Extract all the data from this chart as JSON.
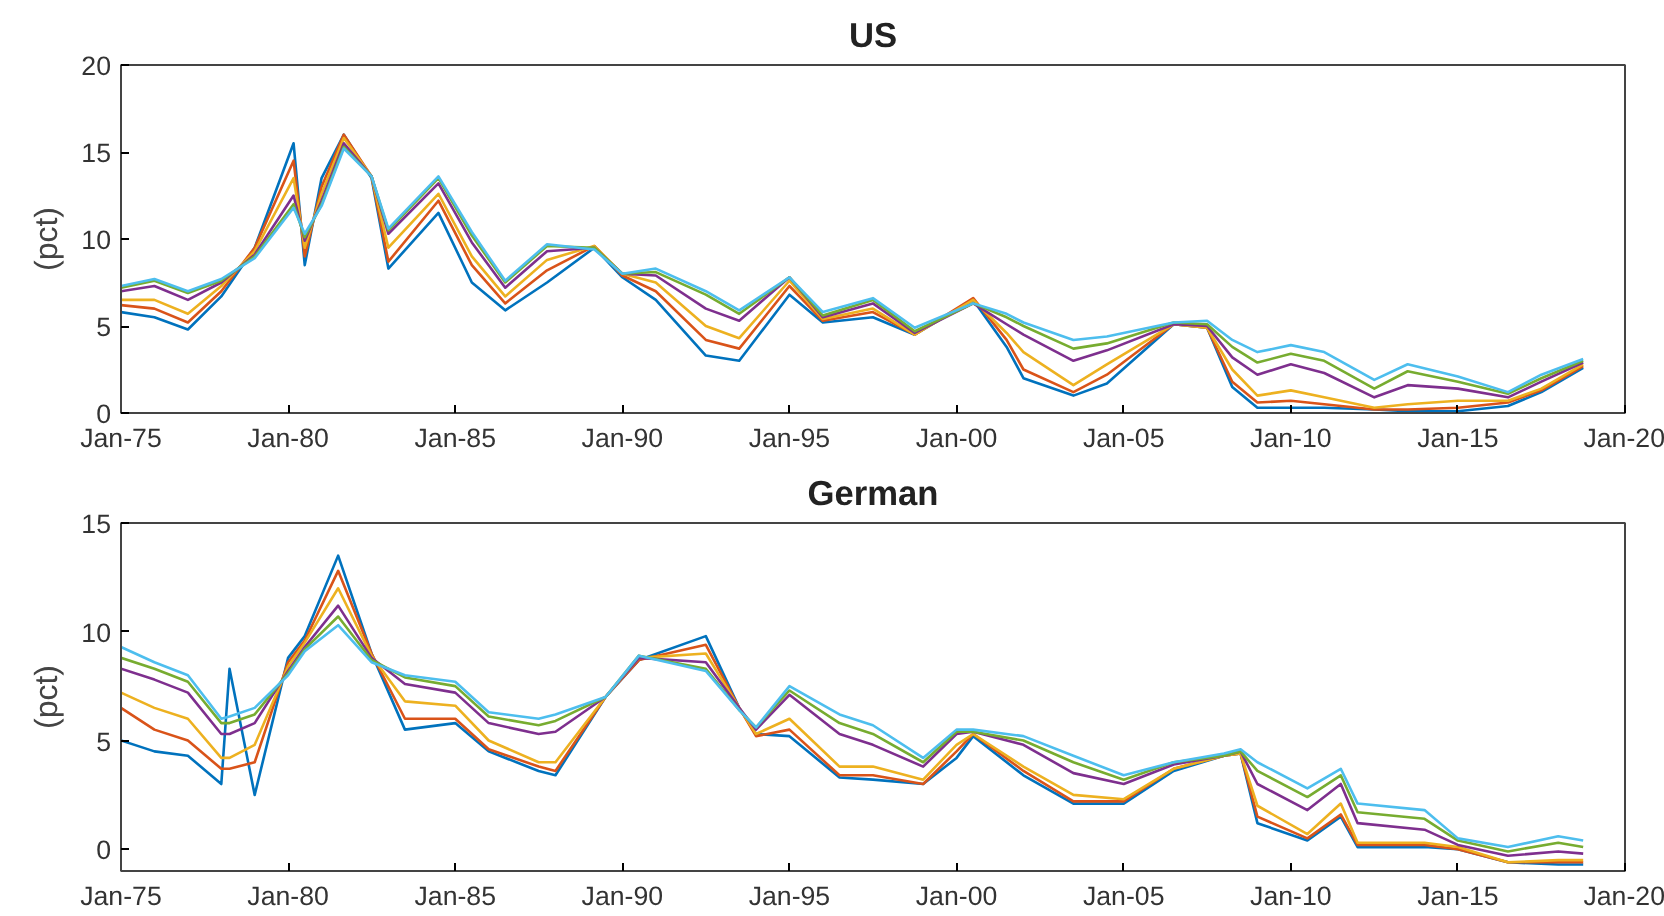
{
  "chart_data": [
    {
      "type": "line",
      "title": "US",
      "ylabel": "(pct)",
      "grid": false,
      "x": [
        "1975-01",
        "1976-01",
        "1977-01",
        "1978-01",
        "1979-01",
        "1980-03",
        "1980-07",
        "1981-01",
        "1981-09",
        "1982-07",
        "1983-01",
        "1984-07",
        "1985-07",
        "1986-07",
        "1987-10",
        "1989-03",
        "1990-01",
        "1991-01",
        "1992-07",
        "1993-07",
        "1995-01",
        "1996-01",
        "1997-07",
        "1998-10",
        "2000-07",
        "2001-07",
        "2002-01",
        "2003-07",
        "2004-07",
        "2006-07",
        "2007-07",
        "2008-04",
        "2009-01",
        "2010-01",
        "2011-01",
        "2012-07",
        "2013-07",
        "2015-01",
        "2016-07",
        "2017-07",
        "2018-10"
      ],
      "xlim": [
        "1975-01",
        "2020-01"
      ],
      "xticks": [
        {
          "value": "1975-01",
          "label": "Jan-75"
        },
        {
          "value": "1980-01",
          "label": "Jan-80"
        },
        {
          "value": "1985-01",
          "label": "Jan-85"
        },
        {
          "value": "1990-01",
          "label": "Jan-90"
        },
        {
          "value": "1995-01",
          "label": "Jan-95"
        },
        {
          "value": "2000-01",
          "label": "Jan-00"
        },
        {
          "value": "2005-01",
          "label": "Jan-05"
        },
        {
          "value": "2010-01",
          "label": "Jan-10"
        },
        {
          "value": "2015-01",
          "label": "Jan-15"
        },
        {
          "value": "2020-01",
          "label": "Jan-20"
        }
      ],
      "ylim": [
        0,
        20
      ],
      "yticks": [
        0,
        5,
        10,
        15,
        20
      ],
      "series": [
        {
          "color": "#0072bd",
          "values": [
            5.8,
            5.5,
            4.8,
            6.7,
            9.5,
            15.5,
            8.5,
            13.5,
            16.0,
            13.5,
            8.3,
            11.5,
            7.5,
            5.9,
            7.5,
            9.5,
            7.8,
            6.5,
            3.3,
            3.0,
            6.8,
            5.2,
            5.5,
            4.5,
            6.5,
            3.8,
            2.0,
            1.0,
            1.7,
            5.1,
            4.9,
            1.5,
            0.3,
            0.3,
            0.3,
            0.2,
            0.1,
            0.1,
            0.4,
            1.2,
            2.6
          ]
        },
        {
          "color": "#d95319",
          "values": [
            6.2,
            6.0,
            5.2,
            7.0,
            9.5,
            14.5,
            9.0,
            13.0,
            16.0,
            13.6,
            8.7,
            12.2,
            8.5,
            6.3,
            8.2,
            9.6,
            7.9,
            7.0,
            4.2,
            3.7,
            7.3,
            5.3,
            5.8,
            4.5,
            6.6,
            4.2,
            2.5,
            1.2,
            2.2,
            5.1,
            4.9,
            1.8,
            0.6,
            0.7,
            0.5,
            0.2,
            0.2,
            0.3,
            0.6,
            1.3,
            2.7
          ]
        },
        {
          "color": "#edb120",
          "values": [
            6.5,
            6.5,
            5.7,
            7.3,
            9.3,
            13.5,
            9.5,
            12.6,
            15.8,
            13.6,
            9.5,
            12.6,
            9.0,
            6.7,
            8.8,
            9.6,
            8.0,
            7.5,
            5.0,
            4.3,
            7.6,
            5.4,
            6.0,
            4.5,
            6.5,
            4.6,
            3.5,
            1.6,
            2.8,
            5.1,
            4.9,
            2.5,
            1.0,
            1.3,
            0.9,
            0.3,
            0.5,
            0.7,
            0.7,
            1.4,
            2.8
          ]
        },
        {
          "color": "#7e2f8e",
          "values": [
            7.0,
            7.3,
            6.5,
            7.5,
            9.1,
            12.5,
            9.9,
            12.2,
            15.5,
            13.6,
            10.3,
            13.2,
            9.8,
            7.2,
            9.3,
            9.5,
            8.0,
            7.9,
            6.0,
            5.3,
            7.8,
            5.5,
            6.3,
            4.6,
            6.3,
            5.1,
            4.5,
            3.0,
            3.6,
            5.1,
            5.0,
            3.2,
            2.2,
            2.8,
            2.3,
            0.9,
            1.6,
            1.4,
            0.9,
            1.8,
            2.9
          ]
        },
        {
          "color": "#77ac30",
          "values": [
            7.2,
            7.6,
            6.9,
            7.6,
            9.0,
            12.0,
            10.1,
            12.0,
            15.3,
            13.6,
            10.5,
            13.5,
            10.2,
            7.5,
            9.6,
            9.5,
            8.0,
            8.1,
            6.8,
            5.7,
            7.8,
            5.6,
            6.5,
            4.7,
            6.3,
            5.5,
            5.0,
            3.7,
            4.0,
            5.2,
            5.1,
            3.8,
            2.9,
            3.4,
            3.0,
            1.4,
            2.4,
            1.8,
            1.1,
            2.0,
            3.0
          ]
        },
        {
          "color": "#4dbeee",
          "values": [
            7.3,
            7.7,
            7.0,
            7.7,
            8.9,
            11.8,
            10.3,
            11.9,
            15.2,
            13.6,
            10.6,
            13.6,
            10.4,
            7.6,
            9.7,
            9.4,
            8.0,
            8.3,
            7.0,
            5.9,
            7.8,
            5.8,
            6.6,
            4.9,
            6.3,
            5.7,
            5.2,
            4.2,
            4.4,
            5.2,
            5.3,
            4.2,
            3.5,
            3.9,
            3.5,
            1.9,
            2.8,
            2.1,
            1.2,
            2.2,
            3.1
          ]
        }
      ]
    },
    {
      "type": "line",
      "title": "German",
      "ylabel": "(pct)",
      "grid": false,
      "x": [
        "1975-01",
        "1976-01",
        "1977-01",
        "1978-01",
        "1978-04",
        "1979-01",
        "1980-01",
        "1980-07",
        "1981-07",
        "1982-07",
        "1983-07",
        "1985-01",
        "1986-01",
        "1987-07",
        "1988-01",
        "1989-07",
        "1990-07",
        "1992-07",
        "1993-07",
        "1994-01",
        "1995-01",
        "1996-07",
        "1997-07",
        "1999-01",
        "2000-01",
        "2000-07",
        "2002-01",
        "2003-07",
        "2005-01",
        "2006-07",
        "2008-01",
        "2008-07",
        "2009-01",
        "2010-07",
        "2011-07",
        "2012-01",
        "2014-01",
        "2015-01",
        "2016-07",
        "2018-01",
        "2018-10"
      ],
      "xlim": [
        "1975-01",
        "2020-01"
      ],
      "xticks": [
        {
          "value": "1975-01",
          "label": "Jan-75"
        },
        {
          "value": "1980-01",
          "label": "Jan-80"
        },
        {
          "value": "1985-01",
          "label": "Jan-85"
        },
        {
          "value": "1990-01",
          "label": "Jan-90"
        },
        {
          "value": "1995-01",
          "label": "Jan-95"
        },
        {
          "value": "2000-01",
          "label": "Jan-00"
        },
        {
          "value": "2005-01",
          "label": "Jan-05"
        },
        {
          "value": "2010-01",
          "label": "Jan-10"
        },
        {
          "value": "2015-01",
          "label": "Jan-15"
        },
        {
          "value": "2020-01",
          "label": "Jan-20"
        }
      ],
      "ylim": [
        -1,
        15
      ],
      "yticks": [
        0,
        5,
        10,
        15
      ],
      "series": [
        {
          "color": "#0072bd",
          "values": [
            5.0,
            4.5,
            4.3,
            3.0,
            8.3,
            2.5,
            8.8,
            9.8,
            13.5,
            9.0,
            5.5,
            5.8,
            4.5,
            3.6,
            3.4,
            7.0,
            8.7,
            9.8,
            6.5,
            5.3,
            5.2,
            3.3,
            3.2,
            3.0,
            4.2,
            5.2,
            3.4,
            2.1,
            2.1,
            3.6,
            4.3,
            4.4,
            1.2,
            0.4,
            1.5,
            0.1,
            0.1,
            0.0,
            -0.6,
            -0.7,
            -0.7
          ]
        },
        {
          "color": "#d95319",
          "values": [
            6.5,
            5.5,
            5.0,
            3.7,
            3.7,
            4.0,
            8.6,
            9.6,
            12.8,
            9.0,
            6.0,
            6.0,
            4.6,
            3.8,
            3.6,
            7.0,
            8.7,
            9.4,
            6.5,
            5.2,
            5.5,
            3.4,
            3.4,
            3.0,
            4.5,
            5.3,
            3.6,
            2.2,
            2.2,
            3.7,
            4.3,
            4.4,
            1.5,
            0.5,
            1.6,
            0.2,
            0.2,
            0.0,
            -0.6,
            -0.6,
            -0.6
          ]
        },
        {
          "color": "#edb120",
          "values": [
            7.2,
            6.5,
            6.0,
            4.2,
            4.2,
            4.8,
            8.4,
            9.5,
            12.0,
            8.9,
            6.8,
            6.6,
            5.0,
            4.0,
            4.0,
            7.0,
            8.8,
            9.0,
            6.5,
            5.3,
            6.0,
            3.8,
            3.8,
            3.2,
            4.8,
            5.3,
            3.8,
            2.5,
            2.3,
            3.7,
            4.3,
            4.4,
            2.0,
            0.7,
            2.1,
            0.3,
            0.3,
            0.1,
            -0.6,
            -0.5,
            -0.5
          ]
        },
        {
          "color": "#7e2f8e",
          "values": [
            8.3,
            7.8,
            7.2,
            5.3,
            5.3,
            5.8,
            8.2,
            9.3,
            11.2,
            8.8,
            7.6,
            7.2,
            5.8,
            5.3,
            5.4,
            7.0,
            8.8,
            8.6,
            6.5,
            5.5,
            7.1,
            5.3,
            4.8,
            3.8,
            5.3,
            5.4,
            4.8,
            3.5,
            3.0,
            3.9,
            4.3,
            4.5,
            3.0,
            1.8,
            3.0,
            1.2,
            0.9,
            0.2,
            -0.3,
            -0.1,
            -0.2
          ]
        },
        {
          "color": "#77ac30",
          "values": [
            8.8,
            8.3,
            7.7,
            5.8,
            5.8,
            6.2,
            8.1,
            9.2,
            10.7,
            8.7,
            7.9,
            7.5,
            6.1,
            5.7,
            5.9,
            7.0,
            8.9,
            8.3,
            6.4,
            5.6,
            7.3,
            5.8,
            5.3,
            4.0,
            5.4,
            5.4,
            5.0,
            4.0,
            3.2,
            4.0,
            4.3,
            4.5,
            3.6,
            2.4,
            3.4,
            1.7,
            1.4,
            0.4,
            -0.1,
            0.3,
            0.1
          ]
        },
        {
          "color": "#4dbeee",
          "values": [
            9.3,
            8.6,
            8.0,
            6.0,
            6.1,
            6.5,
            8.0,
            9.1,
            10.3,
            8.6,
            8.0,
            7.7,
            6.3,
            6.0,
            6.2,
            7.0,
            8.9,
            8.2,
            6.4,
            5.6,
            7.5,
            6.2,
            5.7,
            4.2,
            5.5,
            5.5,
            5.2,
            4.3,
            3.4,
            4.0,
            4.4,
            4.6,
            4.0,
            2.8,
            3.7,
            2.1,
            1.8,
            0.5,
            0.1,
            0.6,
            0.4
          ]
        }
      ]
    }
  ]
}
